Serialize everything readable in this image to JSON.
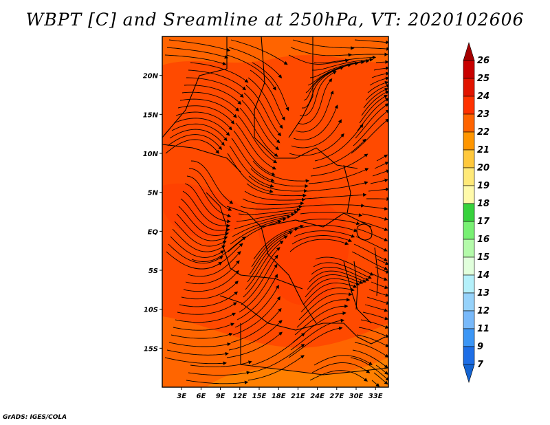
{
  "title": "WBPT [C] and Sreamline at 250hPa, VT: 2020102606",
  "credit": "GrADS: IGES/COLA",
  "map": {
    "lat_labels": [
      "20N",
      "15N",
      "10N",
      "5N",
      "EQ",
      "5S",
      "10S",
      "15S"
    ],
    "lat_values": [
      20,
      15,
      10,
      5,
      0,
      -5,
      -10,
      -15
    ],
    "lon_labels": [
      "3E",
      "6E",
      "9E",
      "12E",
      "15E",
      "18E",
      "21E",
      "24E",
      "27E",
      "30E",
      "33E"
    ],
    "lon_values": [
      3,
      6,
      9,
      12,
      15,
      18,
      21,
      24,
      27,
      30,
      33
    ],
    "lon_range": [
      0,
      35
    ],
    "lat_range": [
      -20,
      25
    ]
  },
  "colorbar": {
    "labels": [
      "26",
      "25",
      "24",
      "23",
      "22",
      "21",
      "20",
      "19",
      "18",
      "17",
      "16",
      "15",
      "14",
      "13",
      "12",
      "11",
      "9",
      "7"
    ],
    "colors": [
      "#a50000",
      "#c80000",
      "#e11400",
      "#ff3200",
      "#ff6400",
      "#ff9600",
      "#ffc83c",
      "#ffe978",
      "#fffaaa",
      "#37d23c",
      "#78f073",
      "#b4faaa",
      "#e1ffdc",
      "#b4f0fa",
      "#96d2fa",
      "#78b9fa",
      "#3c96f5",
      "#1e6ee6",
      "#1464d2"
    ]
  },
  "colors": {
    "field_base": "#ff4a00",
    "field_warm": "#ff6400",
    "field_hot": "#ff3200",
    "streamline": "#000000"
  }
}
